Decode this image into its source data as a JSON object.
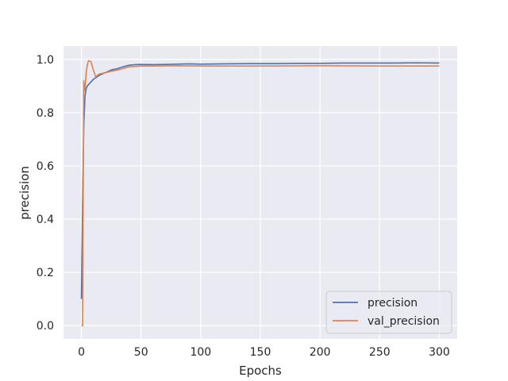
{
  "chart_data": {
    "type": "line",
    "title": "",
    "xlabel": "Epochs",
    "ylabel": "precision",
    "xlim": [
      -15,
      315
    ],
    "ylim": [
      -0.05,
      1.05
    ],
    "x_ticks": [
      0,
      50,
      100,
      150,
      200,
      250,
      300
    ],
    "y_ticks": [
      0.0,
      0.2,
      0.4,
      0.6,
      0.8,
      1.0
    ],
    "grid": true,
    "legend_position": "bottom-right",
    "series": [
      {
        "name": "precision",
        "color": "#4c72b0",
        "x": [
          0,
          1,
          2,
          3,
          4,
          5,
          7,
          10,
          15,
          20,
          25,
          30,
          35,
          40,
          45,
          50,
          60,
          70,
          80,
          90,
          100,
          120,
          140,
          160,
          180,
          200,
          220,
          240,
          260,
          280,
          300
        ],
        "y": [
          0.1,
          0.45,
          0.75,
          0.86,
          0.89,
          0.9,
          0.91,
          0.925,
          0.94,
          0.95,
          0.96,
          0.965,
          0.972,
          0.978,
          0.98,
          0.981,
          0.98,
          0.981,
          0.982,
          0.983,
          0.982,
          0.983,
          0.984,
          0.984,
          0.985,
          0.985,
          0.986,
          0.986,
          0.986,
          0.987,
          0.986
        ]
      },
      {
        "name": "val_precision",
        "color": "#dd8452",
        "x": [
          0,
          1,
          2,
          3,
          4,
          5,
          6,
          8,
          10,
          12,
          15,
          20,
          25,
          30,
          35,
          40,
          50,
          60,
          80,
          100,
          150,
          200,
          250,
          300
        ],
        "y": [
          0.0,
          0.0,
          0.92,
          0.88,
          0.95,
          0.98,
          0.995,
          0.992,
          0.96,
          0.935,
          0.945,
          0.95,
          0.955,
          0.96,
          0.965,
          0.972,
          0.975,
          0.975,
          0.976,
          0.975,
          0.975,
          0.976,
          0.975,
          0.975
        ]
      }
    ]
  }
}
